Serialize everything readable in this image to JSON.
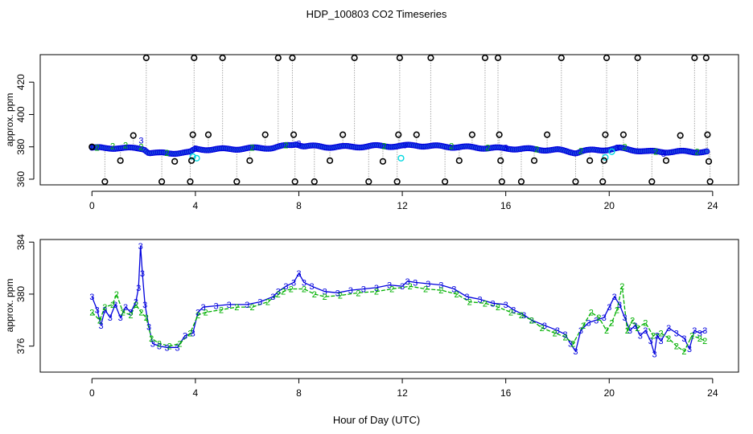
{
  "figure": {
    "title": "HDP_100803  CO2 Timeseries",
    "xlabel": "Hour of Day (UTC)"
  },
  "colors": {
    "outlier": "#000000",
    "series2": "#00b000",
    "series3": "#0000dd",
    "point_fill": "#1f4ee0",
    "cyan": "#00d8e0",
    "connector": "#a8a8a8"
  },
  "chart_data": [
    {
      "type": "scatter",
      "title": "",
      "xlabel": "",
      "ylabel": "approx. ppm",
      "xlim": [
        -2.0,
        25.0
      ],
      "ylim": [
        356.5,
        437.0
      ],
      "xticks": [
        0,
        4,
        8,
        12,
        16,
        20,
        24
      ],
      "yticks": [
        360,
        380,
        400,
        420
      ],
      "baseline": [
        [
          0.0,
          379.5
        ],
        [
          0.5,
          379.0
        ],
        [
          1.0,
          379.5
        ],
        [
          1.5,
          379.0
        ],
        [
          2.0,
          379.0
        ],
        [
          2.2,
          376.5
        ],
        [
          2.6,
          376.0
        ],
        [
          3.0,
          376.0
        ],
        [
          3.4,
          376.5
        ],
        [
          3.8,
          376.5
        ],
        [
          4.0,
          378.5
        ],
        [
          5.0,
          378.5
        ],
        [
          6.0,
          379.0
        ],
        [
          7.0,
          379.5
        ],
        [
          7.7,
          381.0
        ],
        [
          7.9,
          382.0
        ],
        [
          8.2,
          380.5
        ],
        [
          9.0,
          380.0
        ],
        [
          10.0,
          380.0
        ],
        [
          11.0,
          380.5
        ],
        [
          12.0,
          380.5
        ],
        [
          12.5,
          381.0
        ],
        [
          13.0,
          380.5
        ],
        [
          14.0,
          380.0
        ],
        [
          15.0,
          379.5
        ],
        [
          15.9,
          379.0
        ],
        [
          16.2,
          379.0
        ],
        [
          17.0,
          378.5
        ],
        [
          18.0,
          378.0
        ],
        [
          18.7,
          376.5
        ],
        [
          19.0,
          377.5
        ],
        [
          19.6,
          378.0
        ],
        [
          20.0,
          378.5
        ],
        [
          20.4,
          379.0
        ],
        [
          21.0,
          378.0
        ],
        [
          21.5,
          377.0
        ],
        [
          22.0,
          377.0
        ],
        [
          23.0,
          377.0
        ],
        [
          23.8,
          377.0
        ]
      ],
      "series": [
        {
          "name": "2",
          "values": [
            [
              0.2,
              379.5
            ],
            [
              0.8,
              380.5
            ],
            [
              1.3,
              381.0
            ],
            [
              1.9,
              380.0
            ],
            [
              2.9,
              376.5
            ],
            [
              6.2,
              379.5
            ],
            [
              7.5,
              381.0
            ],
            [
              11.3,
              380.5
            ],
            [
              13.9,
              380.5
            ],
            [
              15.3,
              379.5
            ],
            [
              17.2,
              378.5
            ],
            [
              18.9,
              377.5
            ],
            [
              20.6,
              380.0
            ],
            [
              21.8,
              377.0
            ],
            [
              23.4,
              377.0
            ]
          ]
        },
        {
          "name": "3",
          "values": [
            [
              1.9,
              384.0
            ],
            [
              4.0,
              379.0
            ],
            [
              8.0,
              382.0
            ],
            [
              12.1,
              381.0
            ],
            [
              16.0,
              379.5
            ],
            [
              20.3,
              379.5
            ],
            [
              22.1,
              376.0
            ]
          ]
        }
      ],
      "cyan_points": [
        [
          3.9,
          374.0
        ],
        [
          4.05,
          373.0
        ],
        [
          11.95,
          373.0
        ],
        [
          19.85,
          373.5
        ],
        [
          20.1,
          377.0
        ]
      ],
      "outliers": [
        [
          0.0,
          380.0
        ],
        [
          0.5,
          358.5
        ],
        [
          1.1,
          371.5
        ],
        [
          1.6,
          387.0
        ],
        [
          2.1,
          435.0
        ],
        [
          2.7,
          358.5
        ],
        [
          3.2,
          371.0
        ],
        [
          3.8,
          358.5
        ],
        [
          3.85,
          371.5
        ],
        [
          3.9,
          387.5
        ],
        [
          3.95,
          435.0
        ],
        [
          4.5,
          387.5
        ],
        [
          5.05,
          435.0
        ],
        [
          5.6,
          358.5
        ],
        [
          6.1,
          371.5
        ],
        [
          6.7,
          387.5
        ],
        [
          7.2,
          435.0
        ],
        [
          7.75,
          435.0
        ],
        [
          7.8,
          387.5
        ],
        [
          7.85,
          358.5
        ],
        [
          8.6,
          358.5
        ],
        [
          9.2,
          371.5
        ],
        [
          9.7,
          387.5
        ],
        [
          10.15,
          435.0
        ],
        [
          10.7,
          358.5
        ],
        [
          11.25,
          371.0
        ],
        [
          11.8,
          358.5
        ],
        [
          11.85,
          387.5
        ],
        [
          11.9,
          435.0
        ],
        [
          12.55,
          387.5
        ],
        [
          13.1,
          435.0
        ],
        [
          13.65,
          358.5
        ],
        [
          14.2,
          371.5
        ],
        [
          14.7,
          387.5
        ],
        [
          15.2,
          435.0
        ],
        [
          15.7,
          435.0
        ],
        [
          15.75,
          387.5
        ],
        [
          15.8,
          371.5
        ],
        [
          15.85,
          358.5
        ],
        [
          16.6,
          358.5
        ],
        [
          17.1,
          371.5
        ],
        [
          17.6,
          387.5
        ],
        [
          18.15,
          435.0
        ],
        [
          18.7,
          358.5
        ],
        [
          19.25,
          371.5
        ],
        [
          19.75,
          358.5
        ],
        [
          19.8,
          371.5
        ],
        [
          19.85,
          387.5
        ],
        [
          19.9,
          435.0
        ],
        [
          20.55,
          387.5
        ],
        [
          21.1,
          435.0
        ],
        [
          21.65,
          358.5
        ],
        [
          22.2,
          371.5
        ],
        [
          22.75,
          387.0
        ],
        [
          23.3,
          435.0
        ],
        [
          23.75,
          435.0
        ],
        [
          23.8,
          387.5
        ],
        [
          23.85,
          371.0
        ],
        [
          23.9,
          358.5
        ]
      ]
    },
    {
      "type": "line",
      "title": "",
      "xlabel": "",
      "ylabel": "approx. ppm",
      "xlim": [
        -2.0,
        25.0
      ],
      "ylim": [
        374.0,
        384.2
      ],
      "xticks": [
        0,
        4,
        8,
        12,
        16,
        20,
        24
      ],
      "yticks": [
        376,
        380,
        384
      ],
      "series": [
        {
          "name": "3",
          "values": [
            [
              0.0,
              379.8
            ],
            [
              0.2,
              378.8
            ],
            [
              0.35,
              377.6
            ],
            [
              0.5,
              378.8
            ],
            [
              0.7,
              378.2
            ],
            [
              0.9,
              379.2
            ],
            [
              1.1,
              378.2
            ],
            [
              1.3,
              379.0
            ],
            [
              1.5,
              378.6
            ],
            [
              1.7,
              379.4
            ],
            [
              1.8,
              380.5
            ],
            [
              1.88,
              383.7
            ],
            [
              1.95,
              381.6
            ],
            [
              2.05,
              379.2
            ],
            [
              2.2,
              377.5
            ],
            [
              2.35,
              376.2
            ],
            [
              2.6,
              376.0
            ],
            [
              2.9,
              375.9
            ],
            [
              3.3,
              375.9
            ],
            [
              3.6,
              376.8
            ],
            [
              3.9,
              377.0
            ],
            [
              4.1,
              378.6
            ],
            [
              4.3,
              379.0
            ],
            [
              4.8,
              379.1
            ],
            [
              5.3,
              379.2
            ],
            [
              6.0,
              379.2
            ],
            [
              6.5,
              379.4
            ],
            [
              7.0,
              379.8
            ],
            [
              7.2,
              380.2
            ],
            [
              7.5,
              380.6
            ],
            [
              7.8,
              380.9
            ],
            [
              8.0,
              381.6
            ],
            [
              8.2,
              380.9
            ],
            [
              8.5,
              380.6
            ],
            [
              9.0,
              380.2
            ],
            [
              9.5,
              380.1
            ],
            [
              10.0,
              380.3
            ],
            [
              10.5,
              380.4
            ],
            [
              11.0,
              380.5
            ],
            [
              11.5,
              380.7
            ],
            [
              12.0,
              380.6
            ],
            [
              12.2,
              381.0
            ],
            [
              12.5,
              380.9
            ],
            [
              13.0,
              380.8
            ],
            [
              13.5,
              380.7
            ],
            [
              14.0,
              380.4
            ],
            [
              14.5,
              379.8
            ],
            [
              15.0,
              379.6
            ],
            [
              15.5,
              379.3
            ],
            [
              16.0,
              379.2
            ],
            [
              16.3,
              378.8
            ],
            [
              16.7,
              378.4
            ],
            [
              17.0,
              378.0
            ],
            [
              17.5,
              377.6
            ],
            [
              18.0,
              377.2
            ],
            [
              18.3,
              376.9
            ],
            [
              18.5,
              376.2
            ],
            [
              18.7,
              375.6
            ],
            [
              18.9,
              377.2
            ],
            [
              19.2,
              377.8
            ],
            [
              19.5,
              378.0
            ],
            [
              19.8,
              378.2
            ],
            [
              20.0,
              379.0
            ],
            [
              20.2,
              379.8
            ],
            [
              20.4,
              379.2
            ],
            [
              20.6,
              378.2
            ],
            [
              20.8,
              377.2
            ],
            [
              21.0,
              377.6
            ],
            [
              21.2,
              376.8
            ],
            [
              21.4,
              377.2
            ],
            [
              21.6,
              376.4
            ],
            [
              21.75,
              375.4
            ],
            [
              21.85,
              376.8
            ],
            [
              22.0,
              376.4
            ],
            [
              22.3,
              377.4
            ],
            [
              22.6,
              377.0
            ],
            [
              22.9,
              376.6
            ],
            [
              23.1,
              375.8
            ],
            [
              23.3,
              377.2
            ],
            [
              23.5,
              377.0
            ],
            [
              23.7,
              377.2
            ]
          ]
        },
        {
          "name": "2",
          "values": [
            [
              0.0,
              378.6
            ],
            [
              0.3,
              378.0
            ],
            [
              0.5,
              379.0
            ],
            [
              0.8,
              379.2
            ],
            [
              0.95,
              380.0
            ],
            [
              1.2,
              378.6
            ],
            [
              1.5,
              378.4
            ],
            [
              1.7,
              379.2
            ],
            [
              1.9,
              378.6
            ],
            [
              2.1,
              378.2
            ],
            [
              2.3,
              376.6
            ],
            [
              2.6,
              376.2
            ],
            [
              3.0,
              376.0
            ],
            [
              3.4,
              376.2
            ],
            [
              3.8,
              377.0
            ],
            [
              4.1,
              378.4
            ],
            [
              4.4,
              378.6
            ],
            [
              5.0,
              378.8
            ],
            [
              5.6,
              379.0
            ],
            [
              6.2,
              379.0
            ],
            [
              6.8,
              379.4
            ],
            [
              7.2,
              380.0
            ],
            [
              7.4,
              380.2
            ],
            [
              7.7,
              380.4
            ],
            [
              8.2,
              380.4
            ],
            [
              8.6,
              380.0
            ],
            [
              9.0,
              379.8
            ],
            [
              9.6,
              379.9
            ],
            [
              10.3,
              380.1
            ],
            [
              11.0,
              380.2
            ],
            [
              11.6,
              380.4
            ],
            [
              12.3,
              380.6
            ],
            [
              12.9,
              380.4
            ],
            [
              13.5,
              380.3
            ],
            [
              14.1,
              380.0
            ],
            [
              14.6,
              379.4
            ],
            [
              15.2,
              379.3
            ],
            [
              15.7,
              379.0
            ],
            [
              16.2,
              378.6
            ],
            [
              16.6,
              378.4
            ],
            [
              17.0,
              378.0
            ],
            [
              17.4,
              377.4
            ],
            [
              17.9,
              377.0
            ],
            [
              18.3,
              376.7
            ],
            [
              18.6,
              376.2
            ],
            [
              19.0,
              377.6
            ],
            [
              19.3,
              378.6
            ],
            [
              19.6,
              378.2
            ],
            [
              19.9,
              377.2
            ],
            [
              20.1,
              377.8
            ],
            [
              20.3,
              378.8
            ],
            [
              20.5,
              380.6
            ],
            [
              20.7,
              377.2
            ],
            [
              20.9,
              378.0
            ],
            [
              21.1,
              377.4
            ],
            [
              21.4,
              377.8
            ],
            [
              21.7,
              376.8
            ],
            [
              22.0,
              377.0
            ],
            [
              22.3,
              376.6
            ],
            [
              22.6,
              376.0
            ],
            [
              22.9,
              375.6
            ],
            [
              23.2,
              376.8
            ],
            [
              23.5,
              376.6
            ],
            [
              23.7,
              376.4
            ]
          ]
        }
      ]
    }
  ]
}
